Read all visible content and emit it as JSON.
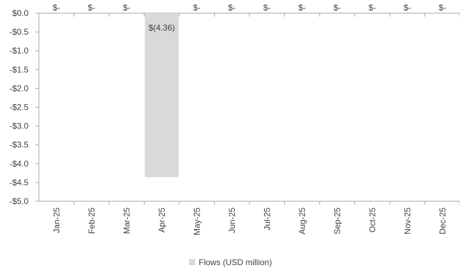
{
  "chart_data": {
    "type": "bar",
    "title": "",
    "xlabel": "",
    "ylabel": "",
    "categories": [
      "Jan-25",
      "Feb-25",
      "Mar-25",
      "Apr-25",
      "May-25",
      "Jun-25",
      "Jul-25",
      "Aug-25",
      "Sep-25",
      "Oct-25",
      "Nov-25",
      "Dec-25"
    ],
    "series": [
      {
        "name": "Flows (USD million)",
        "values": [
          0,
          0,
          0,
          -4.36,
          0,
          0,
          0,
          0,
          0,
          0,
          0,
          0
        ],
        "data_labels": [
          "$-",
          "$-",
          "$-",
          "$(4.36)",
          "$-",
          "$-",
          "$-",
          "$-",
          "$-",
          "$-",
          "$-",
          "$-"
        ],
        "color": "#d9d9d9"
      }
    ],
    "ylim": [
      -5.0,
      0.0
    ],
    "yticks": [
      0,
      -0.5,
      -1.0,
      -1.5,
      -2.0,
      -2.5,
      -3.0,
      -3.5,
      -4.0,
      -4.5,
      -5.0
    ],
    "ytick_labels": [
      "$0.0",
      "-$0.5",
      "-$1.0",
      "-$1.5",
      "-$2.0",
      "-$2.5",
      "-$3.0",
      "-$3.5",
      "-$4.0",
      "-$4.5",
      "-$5.0"
    ],
    "grid": false,
    "legend_position": "bottom"
  }
}
